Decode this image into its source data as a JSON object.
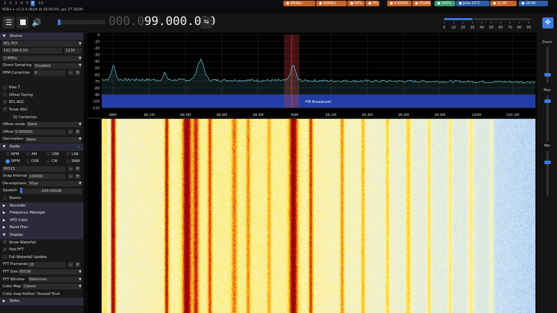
{
  "topbar": {
    "workspaces": [
      "1",
      "2",
      "3",
      "4",
      "5",
      "6",
      "10"
    ],
    "active_workspace": "6",
    "chips": [
      {
        "label": "4MiB/s",
        "color": "#c86428",
        "icon": "download-icon"
      },
      {
        "label": "50KiB/s",
        "color": "#c86428",
        "icon": "upload-icon"
      },
      {
        "label": "50%",
        "color": "#c86428",
        "icon": "cpu-icon"
      },
      {
        "label": "0%",
        "color": "#c86428",
        "icon": "gpu-icon"
      },
      {
        "label": "4.63GiB",
        "color": "#c86428",
        "icon": "memory-icon"
      },
      {
        "label": "0%RM",
        "color": "#c86428",
        "icon": "ram-icon"
      },
      {
        "label": "100%",
        "color": "#3c9c6c",
        "icon": "battery-icon"
      },
      {
        "label": "Jona 22°C",
        "color": "#2c5fa8",
        "icon": "weather-icon"
      },
      {
        "label": "11:00",
        "color": "#c86428",
        "icon": "clock-icon"
      },
      {
        "label": "18:00",
        "color": "#2c5fa8",
        "icon": "calendar-icon"
      }
    ]
  },
  "window_title": "SDR++ v1.0.4 (Built at 00:00:00, Jan 27 2024)",
  "toolbar": {
    "frequency_dim": "000.0",
    "frequency_lit": "99.000.000",
    "snr_ticks": [
      "0",
      "10",
      "20",
      "30",
      "40",
      "50",
      "60",
      "70",
      "80",
      "90"
    ]
  },
  "sidebar": {
    "source_header": "Source",
    "source_type": "RTL-TCP",
    "host": "192.168.6.59",
    "port": "1234",
    "sample_rate": "2.4MHz",
    "direct_sampling_label": "Direct Sampling",
    "direct_sampling_value": "Disabled",
    "ppm_label": "PPM Correction",
    "ppm_value": "6",
    "bias_t": "Bias T",
    "offset_tuning": "Offset Tuning",
    "rtl_agc": "RTL AGC",
    "tuner_agc": "Tuner AGC",
    "iq_correction": "IQ Correction",
    "offset_mode_label": "Offset mode",
    "offset_mode_value": "None",
    "offset_label": "Offset",
    "offset_value": "0.000000",
    "decimation_label": "Decimation",
    "decimation_value": "None",
    "radio_header": "Radio",
    "modes_row1": [
      "NFM",
      "AM",
      "USB",
      "LSB"
    ],
    "modes_row2": [
      "WFM",
      "DSB",
      "CW",
      "RAW"
    ],
    "selected_mode": "WFM",
    "bandwidth": "96515",
    "snap_label": "Snap Interval",
    "snap_value": "100000",
    "deemph_label": "De-emphasis",
    "deemph_value": "50µs",
    "squelch_label": "Squelch",
    "squelch_value": "-100.000dB",
    "stereo": "Stereo",
    "recorder_header": "Recorder",
    "freq_manager_header": "Frequency Manager",
    "vfo_color_header": "VFO Color",
    "band_plan_header": "Band Plan",
    "display_header": "Display",
    "show_waterfall": "Show Waterfall",
    "fast_fft": "Fast FFT",
    "full_wf_update": "Full Waterfall Update",
    "fft_framerate_label": "FFT Framerate",
    "fft_framerate_value": "20",
    "fft_size_label": "FFT Size",
    "fft_size_value": "65536",
    "fft_window_label": "FFT Window",
    "fft_window_value": "Blackman",
    "color_map_label": "Color Map",
    "color_map_value": "Classic",
    "color_map_author": "Color map Author: Youssef Touil",
    "sinks_header": "Sinks"
  },
  "fft": {
    "db_ticks": [
      "0",
      "-10",
      "-20",
      "-30",
      "-40",
      "-50",
      "-60",
      "-70",
      "-80",
      "-90",
      "-100",
      "-110"
    ],
    "freq_ticks": [
      "98M",
      "98.2M",
      "98.4M",
      "98.6M",
      "98.8M",
      "99M",
      "99.2M",
      "99.4M",
      "99.6M",
      "99.8M",
      "100M",
      "100.2M"
    ],
    "band_label": "FM Broadcast",
    "band_color": "#1a2aa0",
    "trace_color": "#6fd0d8",
    "vfo_color": "#b03030"
  },
  "right_panel": {
    "zoom_label": "Zoom",
    "max_label": "Max",
    "min_label": "Min"
  }
}
